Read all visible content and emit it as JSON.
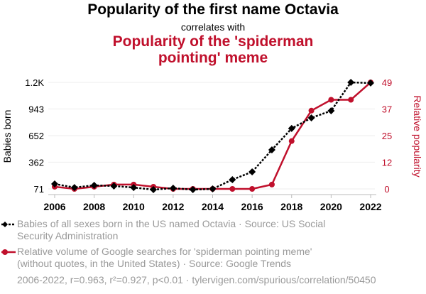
{
  "title": "Popularity of the first name Octavia",
  "subtitle": "correlates with",
  "title2": "Popularity of the 'spiderman pointing' meme",
  "legend": [
    "Babies of all sexes born in the US named Octavia · Source: US Social Security Administration",
    "Relative volume of Google searches for 'spiderman pointing meme' (without quotes, in the United States) · Source: Google Trends"
  ],
  "footer": "2006-2022, r=0.963, r²=0.927, p<0.01 · tylervigen.com/spurious/correlation/50450",
  "colors": {
    "series1": "#000000",
    "series2": "#c0102c"
  },
  "chart_data": {
    "type": "line",
    "x": [
      2006,
      2007,
      2008,
      2009,
      2010,
      2011,
      2012,
      2013,
      2014,
      2015,
      2016,
      2017,
      2018,
      2019,
      2020,
      2021,
      2022
    ],
    "xticks": [
      "2006",
      "2008",
      "2010",
      "2012",
      "2014",
      "2016",
      "2018",
      "2020",
      "2022"
    ],
    "ylabel": "Babies born",
    "y2label": "Relative popularity",
    "yticks": [
      "71",
      "362",
      "652",
      "943",
      "1.2K"
    ],
    "ytick_values": [
      71,
      362,
      652,
      943,
      1233
    ],
    "y2ticks": [
      "0",
      "12",
      "25",
      "37",
      "49"
    ],
    "ylim": [
      71,
      1233
    ],
    "y2lim": [
      0,
      49
    ],
    "grid": true,
    "series": [
      {
        "name": "Babies of all sexes born in the US named Octavia",
        "axis": "left",
        "values": [
          125,
          86,
          110,
          102,
          86,
          63,
          79,
          63,
          71,
          172,
          257,
          497,
          730,
          846,
          923,
          1233,
          1226
        ]
      },
      {
        "name": "Relative volume of Google searches for 'spiderman pointing meme'",
        "axis": "right",
        "values": [
          1,
          0,
          1,
          2,
          2,
          1,
          0,
          0,
          0,
          0,
          0,
          2,
          22,
          36,
          41,
          41,
          49
        ]
      }
    ]
  }
}
